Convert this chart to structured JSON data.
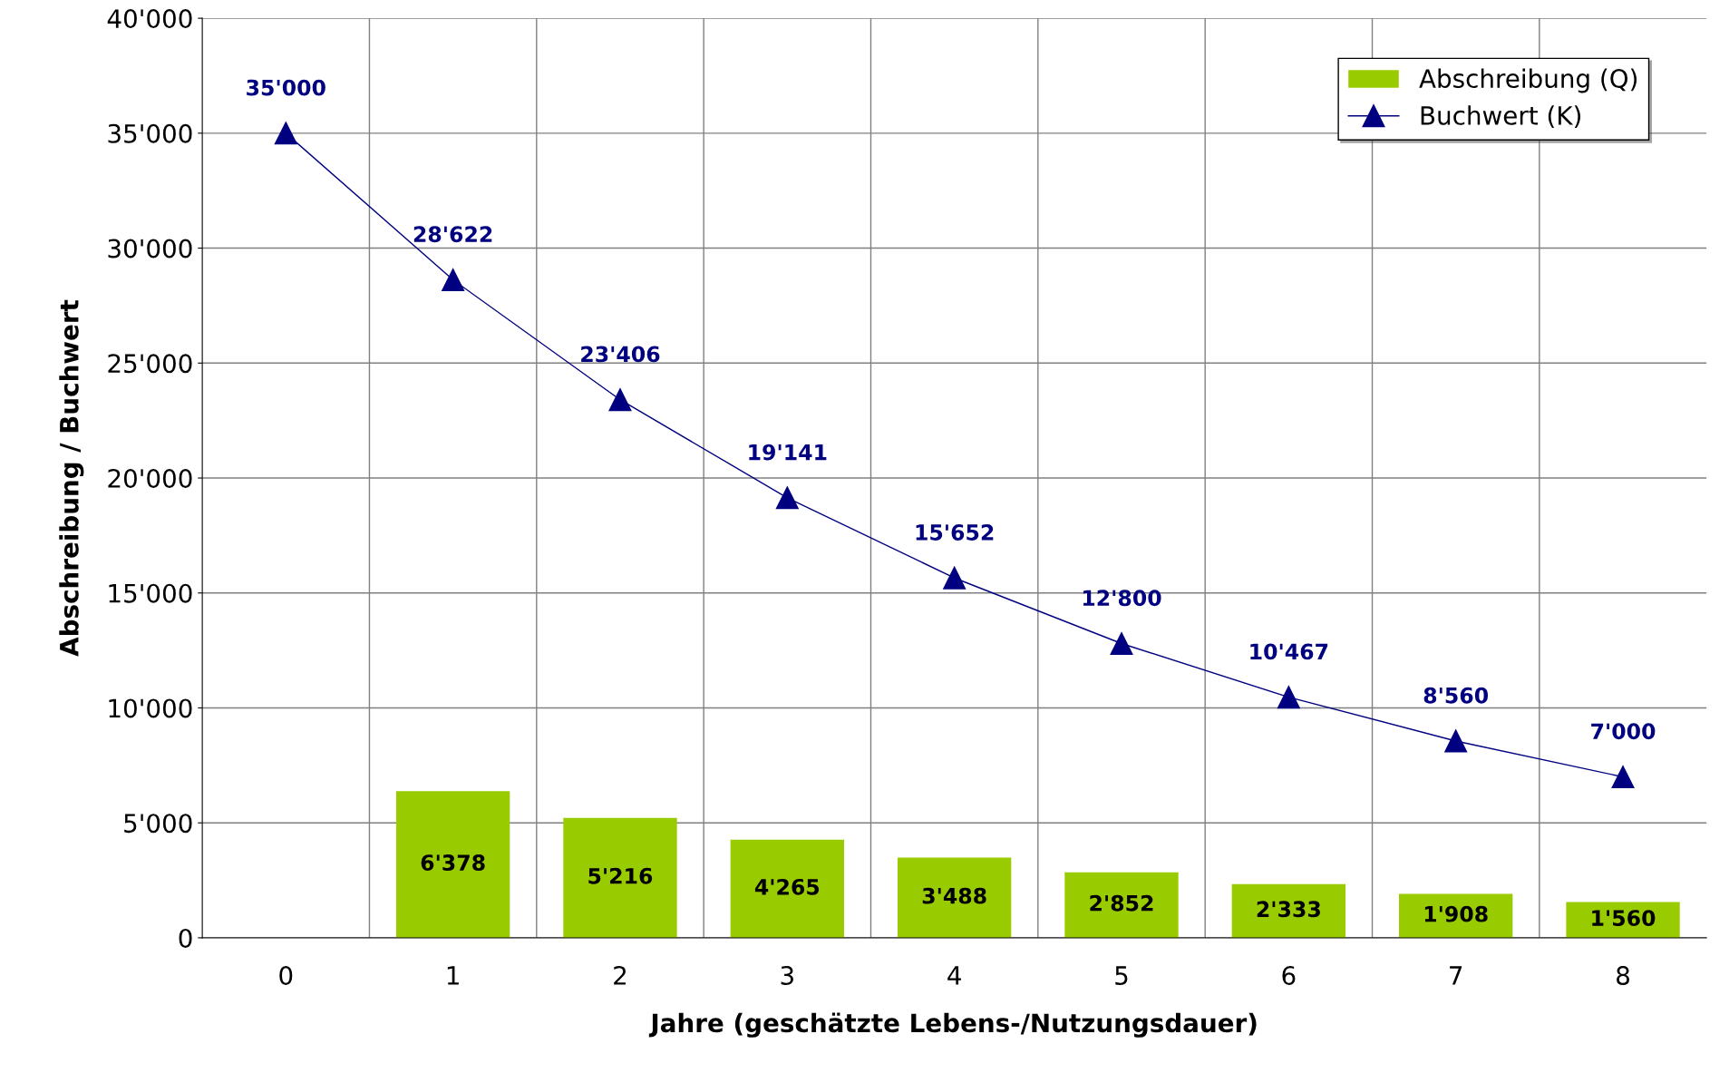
{
  "chart_data": {
    "type": "bar",
    "xlabel": "Jahre (geschätzte Lebens-/Nutzungsdauer)",
    "ylabel": "Abschreibung / Buchwert",
    "categories": [
      "0",
      "1",
      "2",
      "3",
      "4",
      "5",
      "6",
      "7",
      "8"
    ],
    "series": [
      {
        "name": "Abschreibung (Q)",
        "color": "#99cc00",
        "values": [
          null,
          6378,
          5216,
          4265,
          3488,
          2852,
          2333,
          1908,
          1560
        ],
        "value_labels": [
          null,
          "6'378",
          "5'216",
          "4'265",
          "3'488",
          "2'852",
          "2'333",
          "1'908",
          "1'560"
        ]
      },
      {
        "name": "Buchwert (K)",
        "type": "line",
        "color": "#000080",
        "marker": "triangle",
        "line_style": "solid",
        "values": [
          35000,
          28622,
          23406,
          19141,
          15652,
          12800,
          10467,
          8560,
          7000
        ],
        "value_labels": [
          "35'000",
          "28'622",
          "23'406",
          "19'141",
          "15'652",
          "12'800",
          "10'467",
          "8'560",
          "7'000"
        ]
      }
    ],
    "ylim": [
      0,
      40000
    ],
    "yticks": [
      {
        "value": 0,
        "label": "0"
      },
      {
        "value": 5000,
        "label": "5'000"
      },
      {
        "value": 10000,
        "label": "10'000"
      },
      {
        "value": 15000,
        "label": "15'000"
      },
      {
        "value": 20000,
        "label": "20'000"
      },
      {
        "value": 25000,
        "label": "25'000"
      },
      {
        "value": 30000,
        "label": "30'000"
      },
      {
        "value": 35000,
        "label": "35'000"
      },
      {
        "value": 40000,
        "label": "40'000"
      }
    ],
    "grid": true,
    "legend": "top right"
  }
}
